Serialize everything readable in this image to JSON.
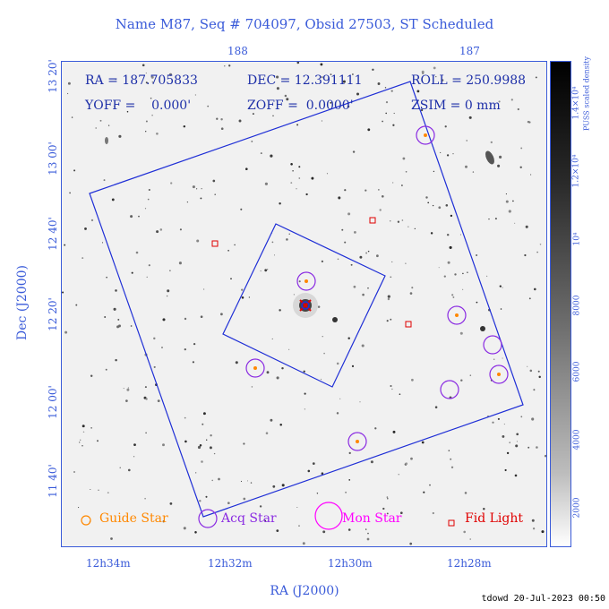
{
  "title": "Name M87, Seq # 704097, Obsid 27503, ST Scheduled",
  "info": {
    "ra": "RA = 187.705833",
    "dec": "DEC = 12.391111",
    "roll": "ROLL = 250.9988",
    "yoff": "YOFF =    0.000'",
    "zoff": "ZOFF =  0.0000'",
    "zsim": "ZSIM = 0 mm"
  },
  "axes": {
    "xlabel": "RA (J2000)",
    "ylabel": "Dec (J2000)",
    "top_ticks": [
      "188",
      "187"
    ],
    "bottom_ticks": [
      "12h34m",
      "12h32m",
      "12h30m",
      "12h28m"
    ],
    "left_ticks": [
      "13 20'",
      "13 00'",
      "12 40'",
      "12 20'",
      "12 00'",
      "11 40'"
    ]
  },
  "colorbar": {
    "label": "PUSS scaled density",
    "ticks": [
      "2000",
      "4000",
      "6000",
      "8000",
      "10⁴",
      "1.2×10⁴",
      "1.4×10⁴"
    ]
  },
  "legend": {
    "guide": "Guide Star",
    "acq": "Acq Star",
    "mon": "Mon Star",
    "fid": "Fid Light"
  },
  "colors": {
    "guide": "#ff8800",
    "acq": "#8a2be2",
    "mon": "#ff00ff",
    "fid": "#e00000",
    "frame": "#1f2fd6"
  },
  "footer": "tdowd 20-Jul-2023 00:50"
}
